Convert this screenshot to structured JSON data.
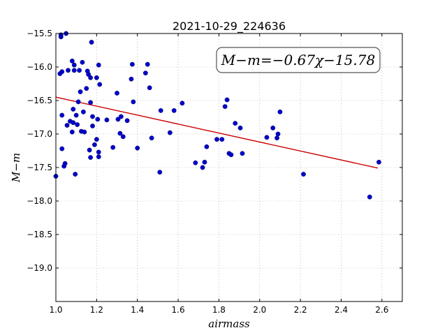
{
  "chart_data": {
    "type": "scatter",
    "title": "2021-10-29_224636",
    "xlabel": "airmass",
    "ylabel": "M−m",
    "xlim": [
      1.0,
      2.7
    ],
    "ylim": [
      -19.5,
      -15.5
    ],
    "y_inverted": true,
    "grid": true,
    "x_ticks": [
      1.0,
      1.2,
      1.4,
      1.6,
      1.8,
      2.0,
      2.2,
      2.4,
      2.6
    ],
    "y_ticks": [
      -15.5,
      -16.0,
      -16.5,
      -17.0,
      -17.5,
      -18.0,
      -18.5,
      -19.0
    ],
    "x_tick_labels": [
      "1.0",
      "1.2",
      "1.4",
      "1.6",
      "1.8",
      "2.0",
      "2.2",
      "2.4",
      "2.6"
    ],
    "y_tick_labels": [
      "−15.5",
      "−16.0",
      "−16.5",
      "−17.0",
      "−17.5",
      "−18.0",
      "−18.5",
      "−19.0"
    ],
    "annotation": "M−m=−0.67χ−15.78",
    "colors": {
      "points": "#0000cc",
      "fit_line": "#cc0000",
      "grid": "#999999"
    },
    "fit_line": {
      "slope": -0.67,
      "intercept": -15.78,
      "x_range": [
        1.0,
        2.58
      ]
    },
    "points": [
      [
        1.0,
        -17.63
      ],
      [
        1.02,
        -16.1
      ],
      [
        1.025,
        -15.52
      ],
      [
        1.025,
        -15.55
      ],
      [
        1.03,
        -16.07
      ],
      [
        1.03,
        -16.72
      ],
      [
        1.03,
        -17.22
      ],
      [
        1.04,
        -17.48
      ],
      [
        1.045,
        -17.44
      ],
      [
        1.05,
        -15.5
      ],
      [
        1.055,
        -16.87
      ],
      [
        1.06,
        -16.05
      ],
      [
        1.07,
        -16.81
      ],
      [
        1.08,
        -15.91
      ],
      [
        1.08,
        -16.97
      ],
      [
        1.085,
        -16.83
      ],
      [
        1.085,
        -16.63
      ],
      [
        1.09,
        -15.97
      ],
      [
        1.09,
        -16.05
      ],
      [
        1.095,
        -17.6
      ],
      [
        1.1,
        -16.72
      ],
      [
        1.105,
        -16.86
      ],
      [
        1.11,
        -16.52
      ],
      [
        1.115,
        -16.05
      ],
      [
        1.12,
        -16.37
      ],
      [
        1.125,
        -16.96
      ],
      [
        1.13,
        -15.93
      ],
      [
        1.135,
        -16.67
      ],
      [
        1.14,
        -16.97
      ],
      [
        1.15,
        -16.32
      ],
      [
        1.155,
        -16.06
      ],
      [
        1.16,
        -16.11
      ],
      [
        1.165,
        -17.24
      ],
      [
        1.17,
        -17.35
      ],
      [
        1.17,
        -16.16
      ],
      [
        1.17,
        -16.53
      ],
      [
        1.175,
        -15.63
      ],
      [
        1.18,
        -16.88
      ],
      [
        1.18,
        -16.74
      ],
      [
        1.19,
        -17.16
      ],
      [
        1.2,
        -17.08
      ],
      [
        1.2,
        -16.16
      ],
      [
        1.205,
        -16.78
      ],
      [
        1.21,
        -17.27
      ],
      [
        1.21,
        -17.34
      ],
      [
        1.21,
        -15.97
      ],
      [
        1.215,
        -16.26
      ],
      [
        1.25,
        -16.79
      ],
      [
        1.28,
        -17.2
      ],
      [
        1.3,
        -16.39
      ],
      [
        1.305,
        -16.78
      ],
      [
        1.315,
        -16.99
      ],
      [
        1.32,
        -16.74
      ],
      [
        1.33,
        -17.04
      ],
      [
        1.35,
        -16.8
      ],
      [
        1.37,
        -16.18
      ],
      [
        1.375,
        -15.96
      ],
      [
        1.38,
        -16.52
      ],
      [
        1.4,
        -17.21
      ],
      [
        1.44,
        -16.09
      ],
      [
        1.45,
        -15.96
      ],
      [
        1.46,
        -16.31
      ],
      [
        1.47,
        -17.06
      ],
      [
        1.51,
        -17.57
      ],
      [
        1.515,
        -16.65
      ],
      [
        1.56,
        -16.98
      ],
      [
        1.58,
        -16.65
      ],
      [
        1.62,
        -16.54
      ],
      [
        1.685,
        -17.43
      ],
      [
        1.72,
        -17.5
      ],
      [
        1.73,
        -17.42
      ],
      [
        1.74,
        -17.19
      ],
      [
        1.79,
        -17.08
      ],
      [
        1.815,
        -17.08
      ],
      [
        1.83,
        -16.59
      ],
      [
        1.84,
        -16.49
      ],
      [
        1.85,
        -17.29
      ],
      [
        1.86,
        -17.31
      ],
      [
        1.88,
        -16.84
      ],
      [
        1.905,
        -16.91
      ],
      [
        1.915,
        -17.29
      ],
      [
        2.035,
        -17.05
      ],
      [
        2.065,
        -16.91
      ],
      [
        2.085,
        -17.06
      ],
      [
        2.09,
        -17.0
      ],
      [
        2.1,
        -16.67
      ],
      [
        2.215,
        -17.6
      ],
      [
        2.54,
        -17.94
      ],
      [
        2.585,
        -17.42
      ]
    ]
  }
}
